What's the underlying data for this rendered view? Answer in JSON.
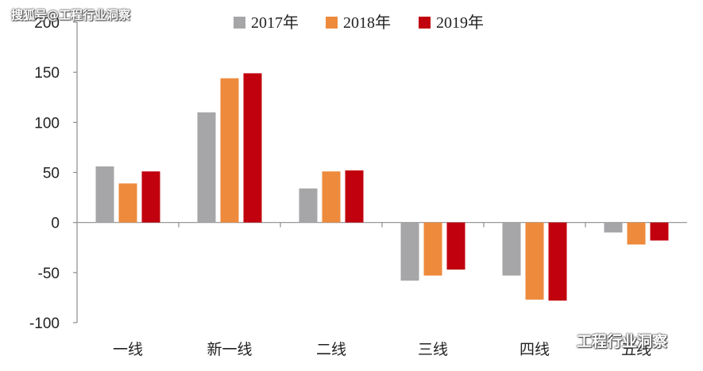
{
  "watermark": {
    "top": "搜狐号@工程行业洞察",
    "bottom": "工程行业洞察",
    "icon": "wechat-icon"
  },
  "colors": {
    "2017年": "#a6a6a8",
    "2018年": "#ee8a3c",
    "2019年": "#c1010e",
    "axis": "#8c8c8c"
  },
  "chart_data": {
    "type": "bar",
    "title": "",
    "xlabel": "",
    "ylabel": "",
    "ylim": [
      -100,
      200
    ],
    "yticks": [
      200,
      150,
      100,
      50,
      0,
      -50,
      -100
    ],
    "categories": [
      "一线",
      "新一线",
      "二线",
      "三线",
      "四线",
      "五线"
    ],
    "legend": "top",
    "grid": false,
    "series": [
      {
        "name": "2017年",
        "values": [
          56,
          110,
          34,
          -58,
          -53,
          -10
        ]
      },
      {
        "name": "2018年",
        "values": [
          39,
          144,
          51,
          -53,
          -77,
          -22
        ]
      },
      {
        "name": "2019年",
        "values": [
          51,
          149,
          52,
          -47,
          -78,
          -18
        ]
      }
    ]
  }
}
